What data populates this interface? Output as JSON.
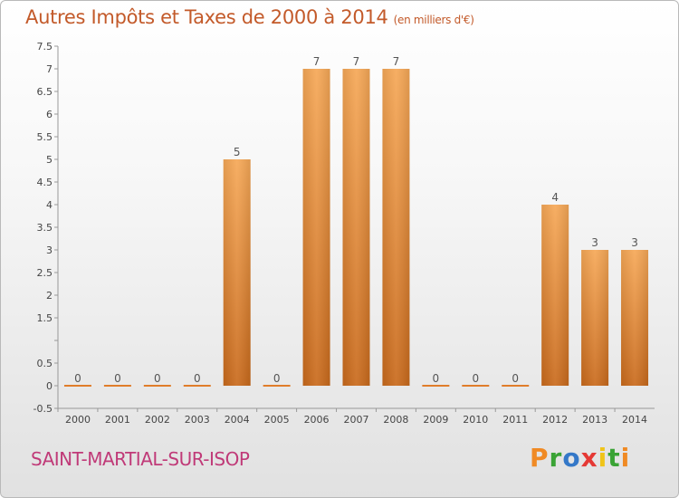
{
  "title": {
    "main": "Autres Impôts et Taxes de 2000 à 2014",
    "unit": "(en milliers d'€)"
  },
  "commune": "SAINT-MARTIAL-SUR-ISOP",
  "logo": {
    "letters": [
      "P",
      "r",
      "o",
      "x",
      "i",
      "t",
      "i"
    ],
    "colors": [
      "#f08a24",
      "#3aa335",
      "#3478c8",
      "#e53935",
      "#f0c419",
      "#3aa335",
      "#f08a24"
    ]
  },
  "colors": {
    "title": "#c35a2a",
    "commune": "#c03a78",
    "bar_light": "#f6a857",
    "bar_dark": "#c96a1c"
  },
  "chart_data": {
    "type": "bar",
    "categories": [
      "2000",
      "2001",
      "2002",
      "2003",
      "2004",
      "2005",
      "2006",
      "2007",
      "2008",
      "2009",
      "2010",
      "2011",
      "2012",
      "2013",
      "2014"
    ],
    "values": [
      0,
      0,
      0,
      0,
      5,
      0,
      7,
      7,
      7,
      0,
      0,
      0,
      4,
      3,
      3
    ],
    "data_labels": [
      "0",
      "0",
      "0",
      "0",
      "5",
      "0",
      "7",
      "7",
      "7",
      "0",
      "0",
      "0",
      "4",
      "3",
      "3"
    ],
    "y_ticks": [
      "-0.5",
      "0",
      "0.5",
      "",
      "1.5",
      "2",
      "2.5",
      "3",
      "3.5",
      "4",
      "4.5",
      "5",
      "5.5",
      "6",
      "6.5",
      "7",
      "7.5"
    ],
    "ylim": [
      -0.5,
      7.5
    ],
    "grid": false,
    "title": "Autres Impôts et Taxes de 2000 à 2014",
    "xlabel": "",
    "ylabel": ""
  }
}
